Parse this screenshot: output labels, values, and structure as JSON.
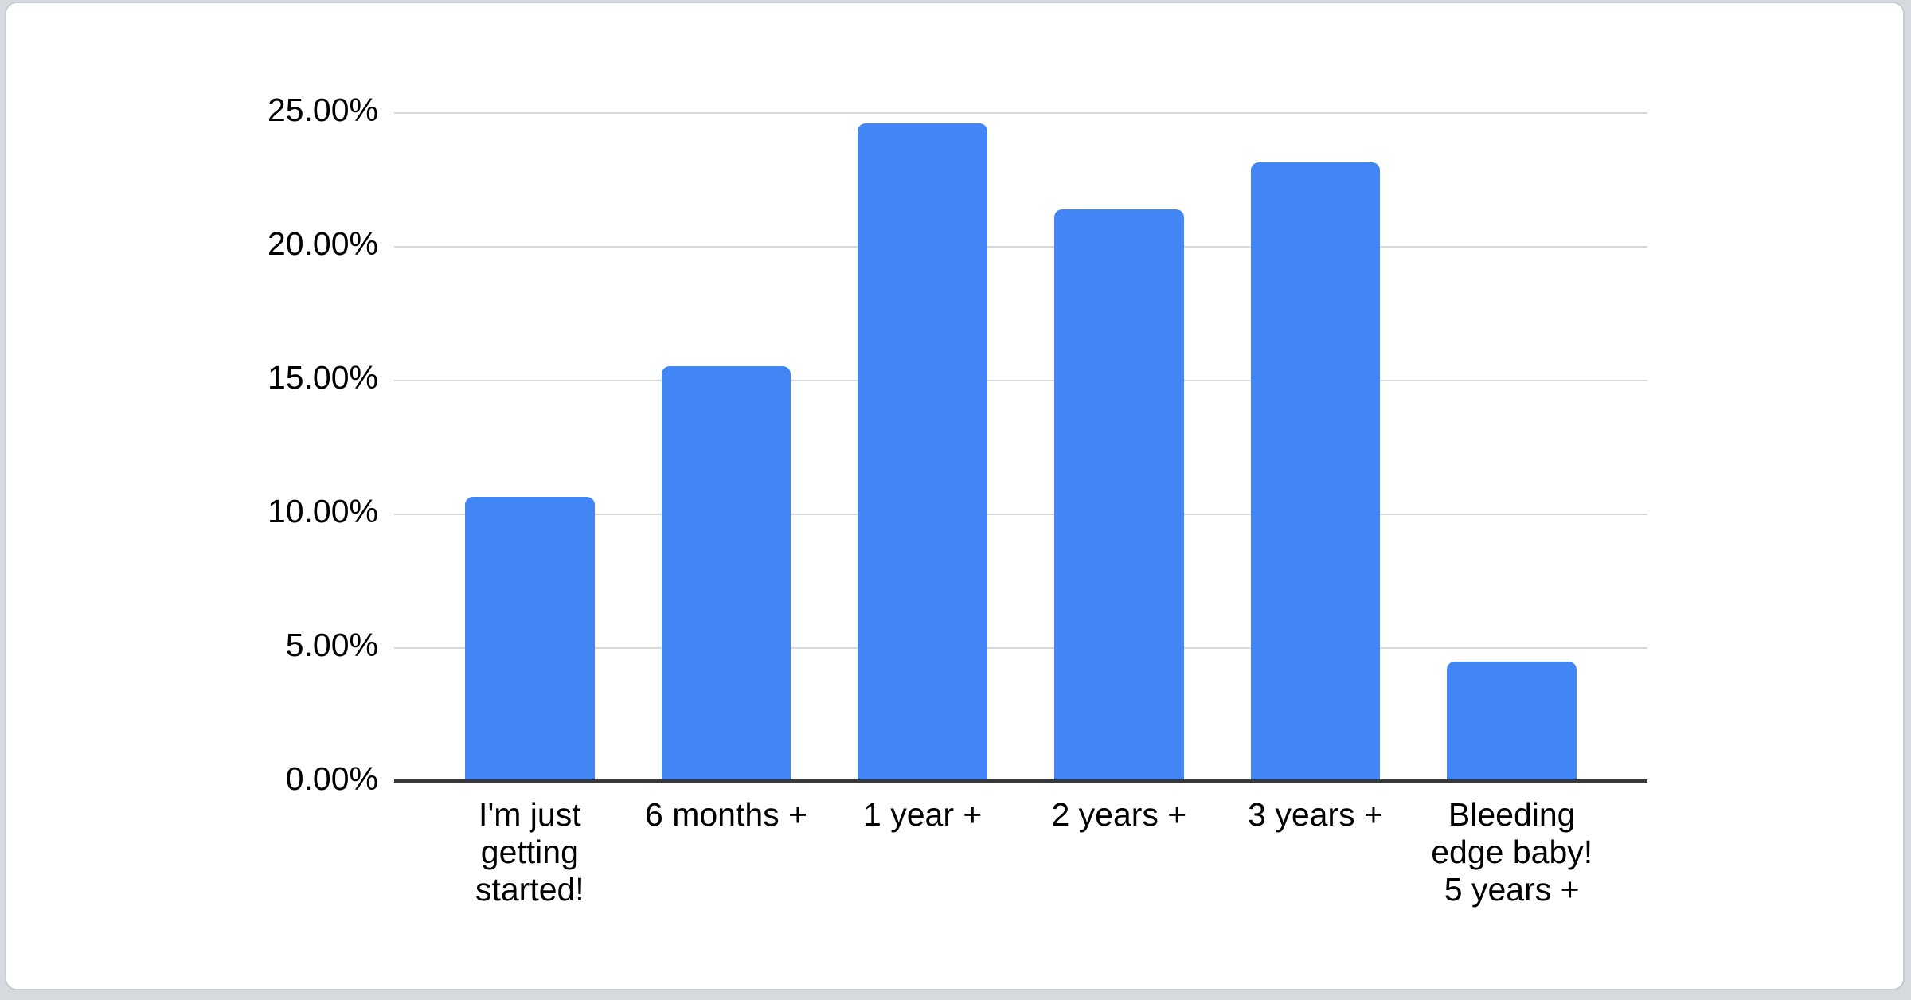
{
  "page": {
    "background_color": "#d6d9dd"
  },
  "card": {
    "background_color": "#ffffff",
    "border_color": "#c7cbcf"
  },
  "chart_data": {
    "type": "bar",
    "title": "",
    "xlabel": "",
    "ylabel": "",
    "categories": [
      "I'm just getting started!",
      "6 months +",
      "1 year +",
      "2 years +",
      "3 years +",
      "Bleeding edge baby! 5 years +"
    ],
    "category_display_lines": [
      [
        "I'm just",
        "getting",
        "started!"
      ],
      [
        "6 months +"
      ],
      [
        "1 year +"
      ],
      [
        "2 years +"
      ],
      [
        "3 years +"
      ],
      [
        "Bleeding",
        "edge baby!",
        "5 years +"
      ]
    ],
    "values": [
      10.65,
      15.55,
      24.6,
      21.4,
      23.15,
      4.5
    ],
    "value_unit": "%",
    "ylim": [
      0,
      25
    ],
    "ytick_interval": 5,
    "yticks": [
      "0.00%",
      "5.00%",
      "10.00%",
      "15.00%",
      "20.00%",
      "25.00%"
    ],
    "grid": "horizontal",
    "legend": "none",
    "colors": {
      "bar": "#4285f4",
      "gridline": "#d9d9d9",
      "axis_line": "#383838",
      "label": "#000000"
    }
  }
}
